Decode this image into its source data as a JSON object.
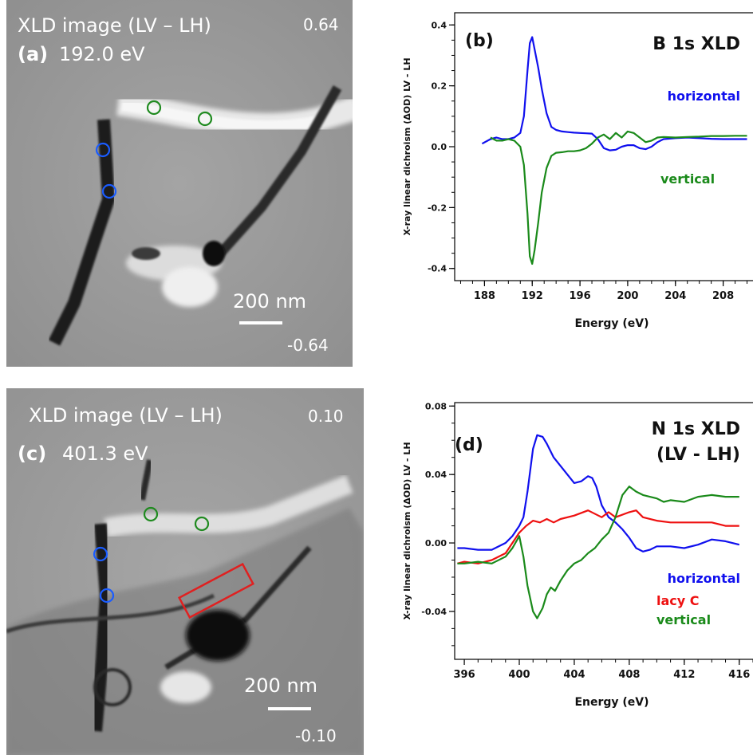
{
  "panel_a": {
    "title": "XLD image  (LV – LH)",
    "label_letter": "(a)",
    "energy": "192.0 eV",
    "max_value": "0.64",
    "min_value": "-0.64",
    "scale_bar": "200 nm",
    "marker_colors": {
      "horizontal": "#1a5cff",
      "vertical": "#1f8a1f"
    }
  },
  "panel_c": {
    "title": "XLD image  (LV – LH)",
    "label_letter": "(c)",
    "energy": "401.3  eV",
    "max_value": "0.10",
    "min_value": "-0.10",
    "scale_bar": "200 nm",
    "region_color": "#e02020"
  },
  "chart_data": [
    {
      "type": "line",
      "panel_label": "(b)",
      "title": "B 1s XLD",
      "xlabel": "Energy (eV)",
      "ylabel": "X-ray linear dichroism (ΔOD)  LV - LH",
      "xlim": [
        185.5,
        210.5
      ],
      "ylim": [
        -0.44,
        0.44
      ],
      "xticks": [
        188,
        192,
        196,
        200,
        204,
        208
      ],
      "yticks": [
        0.4,
        0.2,
        0.0,
        -0.2,
        -0.4
      ],
      "ytick_labels": [
        "0.4",
        "0.2",
        "0.0",
        "-0.2",
        "-0.4"
      ],
      "series": [
        {
          "name": "horizontal",
          "color": "#1010ee",
          "x": [
            187.8,
            188.5,
            189.0,
            189.5,
            190.0,
            190.5,
            191.0,
            191.3,
            191.6,
            191.8,
            192.0,
            192.2,
            192.5,
            192.8,
            193.2,
            193.6,
            194.0,
            194.5,
            195.0,
            195.5,
            196.0,
            196.5,
            197.0,
            197.5,
            198.0,
            198.5,
            199.0,
            199.5,
            200.0,
            200.5,
            201.0,
            201.5,
            202.0,
            202.5,
            203.0,
            204.0,
            205.0,
            206.0,
            207.0,
            208.0,
            209.0,
            210.0
          ],
          "y": [
            0.01,
            0.025,
            0.03,
            0.025,
            0.025,
            0.03,
            0.045,
            0.1,
            0.25,
            0.34,
            0.36,
            0.32,
            0.26,
            0.19,
            0.11,
            0.065,
            0.055,
            0.05,
            0.048,
            0.046,
            0.045,
            0.044,
            0.043,
            0.025,
            -0.005,
            -0.012,
            -0.01,
            0.0,
            0.005,
            0.005,
            -0.005,
            -0.008,
            0.0,
            0.015,
            0.025,
            0.028,
            0.03,
            0.028,
            0.026,
            0.025,
            0.025,
            0.025
          ]
        },
        {
          "name": "vertical",
          "color": "#1a8a1a",
          "x": [
            188.5,
            189.0,
            189.5,
            190.0,
            190.5,
            191.0,
            191.3,
            191.6,
            191.8,
            192.0,
            192.2,
            192.5,
            192.8,
            193.2,
            193.6,
            194.0,
            194.5,
            195.0,
            195.5,
            196.0,
            196.5,
            197.0,
            197.5,
            198.0,
            198.5,
            199.0,
            199.5,
            200.0,
            200.5,
            201.0,
            201.5,
            202.0,
            202.5,
            203.0,
            204.0,
            205.0,
            206.0,
            207.0,
            208.0,
            209.0,
            210.0
          ],
          "y": [
            0.03,
            0.02,
            0.02,
            0.025,
            0.02,
            0.0,
            -0.06,
            -0.22,
            -0.36,
            -0.385,
            -0.34,
            -0.25,
            -0.15,
            -0.07,
            -0.03,
            -0.02,
            -0.018,
            -0.015,
            -0.015,
            -0.012,
            -0.005,
            0.01,
            0.03,
            0.04,
            0.025,
            0.045,
            0.03,
            0.05,
            0.045,
            0.03,
            0.015,
            0.02,
            0.03,
            0.032,
            0.03,
            0.032,
            0.033,
            0.035,
            0.035,
            0.036,
            0.036
          ]
        }
      ]
    },
    {
      "type": "line",
      "panel_label": "(d)",
      "title": "N 1s XLD",
      "subtitle": "(LV - LH)",
      "xlabel": "Energy (eV)",
      "ylabel": "X-ray linear dichroism (ΔOD)  LV - LH",
      "xlim": [
        395.3,
        417.0
      ],
      "ylim": [
        -0.068,
        0.082
      ],
      "xticks": [
        396,
        400,
        404,
        408,
        412,
        416
      ],
      "yticks": [
        0.08,
        0.04,
        0.0,
        -0.04
      ],
      "ytick_labels": [
        "0.08",
        "0.04",
        "0.00",
        "-0.04"
      ],
      "series": [
        {
          "name": "horizontal",
          "color": "#1010ee",
          "x": [
            395.5,
            396.0,
            397.0,
            398.0,
            399.0,
            399.5,
            400.0,
            400.3,
            400.6,
            401.0,
            401.3,
            401.7,
            402.0,
            402.5,
            403.0,
            403.5,
            404.0,
            404.5,
            405.0,
            405.3,
            405.6,
            406.0,
            406.5,
            407.0,
            407.5,
            408.0,
            408.5,
            409.0,
            409.5,
            410.0,
            411.0,
            412.0,
            413.0,
            414.0,
            415.0,
            416.0
          ],
          "y": [
            -0.003,
            -0.003,
            -0.004,
            -0.004,
            0.0,
            0.004,
            0.01,
            0.015,
            0.03,
            0.055,
            0.063,
            0.062,
            0.058,
            0.05,
            0.045,
            0.04,
            0.035,
            0.036,
            0.039,
            0.038,
            0.033,
            0.022,
            0.015,
            0.012,
            0.008,
            0.003,
            -0.003,
            -0.005,
            -0.004,
            -0.002,
            -0.002,
            -0.003,
            -0.001,
            0.002,
            0.001,
            -0.001
          ]
        },
        {
          "name": "lacy C",
          "color": "#ee1010",
          "x": [
            395.5,
            396.0,
            397.0,
            398.0,
            399.0,
            399.5,
            400.0,
            400.5,
            401.0,
            401.5,
            402.0,
            402.5,
            403.0,
            404.0,
            405.0,
            406.0,
            406.5,
            407.0,
            408.0,
            408.5,
            409.0,
            410.0,
            411.0,
            412.0,
            413.0,
            414.0,
            415.0,
            416.0
          ],
          "y": [
            -0.012,
            -0.011,
            -0.012,
            -0.01,
            -0.006,
            0.0,
            0.006,
            0.01,
            0.013,
            0.012,
            0.014,
            0.012,
            0.014,
            0.016,
            0.019,
            0.015,
            0.018,
            0.015,
            0.018,
            0.019,
            0.015,
            0.013,
            0.012,
            0.012,
            0.012,
            0.012,
            0.01,
            0.01
          ]
        },
        {
          "name": "vertical",
          "color": "#1a8a1a",
          "x": [
            395.5,
            396.0,
            397.0,
            398.0,
            399.0,
            399.5,
            400.0,
            400.3,
            400.6,
            401.0,
            401.3,
            401.7,
            402.0,
            402.3,
            402.6,
            403.0,
            403.5,
            404.0,
            404.5,
            405.0,
            405.5,
            406.0,
            406.5,
            407.0,
            407.5,
            408.0,
            408.5,
            409.0,
            409.5,
            410.0,
            410.5,
            411.0,
            412.0,
            413.0,
            414.0,
            415.0,
            416.0
          ],
          "y": [
            -0.012,
            -0.012,
            -0.011,
            -0.012,
            -0.008,
            -0.003,
            0.004,
            -0.008,
            -0.025,
            -0.04,
            -0.044,
            -0.038,
            -0.03,
            -0.026,
            -0.028,
            -0.022,
            -0.016,
            -0.012,
            -0.01,
            -0.006,
            -0.003,
            0.002,
            0.006,
            0.015,
            0.028,
            0.033,
            0.03,
            0.028,
            0.027,
            0.026,
            0.024,
            0.025,
            0.024,
            0.027,
            0.028,
            0.027,
            0.027
          ]
        }
      ]
    }
  ]
}
